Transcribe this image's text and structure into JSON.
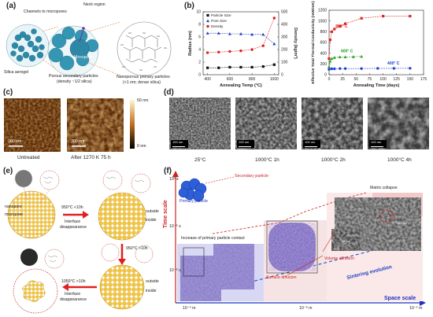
{
  "panels": {
    "a": {
      "label": "(a)",
      "channels": "Channels to micropores",
      "neck": "Neck region",
      "mesopore": "Mesopore",
      "silica_aerogel": "Silica aerogel",
      "porous_secondary": "Porous secondary particles",
      "porous_secondary_density": "(density ~1/2 silica)",
      "nanoporous_primary": "Nanoporous primary particles",
      "nanoporous_primary_sub": "(<1 nm; dense silica)"
    },
    "b": {
      "label": "(b)",
      "legend_left": [
        "Particle Size",
        "Pore Size",
        "Density"
      ],
      "legend_right": [
        "800° C",
        "600° C",
        "400° C"
      ]
    },
    "c": {
      "label": "(c)",
      "scale_top": "50 nm",
      "scale_bottom": "0 nm",
      "scalebar1": "300 nm",
      "scalebar2": "300 nm",
      "caption1": "Untreated",
      "caption2": "After 1270 K  75 h"
    },
    "d": {
      "label": "(d)",
      "scalebar": "100 nm",
      "captions": [
        "25°C",
        "1000°C  1h",
        "1000°C  2h",
        "1000°C  4h"
      ]
    },
    "e": {
      "label": "(e)",
      "nanopore": "nanopore",
      "micropore": "micropore",
      "step1": "950°C <10h",
      "interface1": "Interface",
      "disappearance1": "disappearance",
      "outside1": "outside",
      "inside1": "inside",
      "step2": "950°C >10h",
      "step3": "1050°C >10h",
      "interface2": "Interface",
      "disappearance2": "disappearance",
      "outside2": "outside",
      "inside2": "inside"
    },
    "f": {
      "label": "(f)",
      "time_scale": "Time scale",
      "space_scale": "Space scale",
      "y_ticks": [
        "10³ s",
        "10⁻⁶ s",
        "10⁻⁹ s"
      ],
      "x_ticks": [
        "10⁻⁹ m",
        "10⁻⁸ m",
        "10⁻⁶ m"
      ],
      "secondary_particle": "Secondary particle",
      "primary_particle": "Primary particle",
      "matrix_collapse": "Matrix collapse",
      "increase_contact": "Increase of primary particle contact",
      "volume_diffusion": "Volume diffusion",
      "surface_diffusion": "Surface diffusion",
      "sintering_evolution": "Sintering evolution",
      "scale_100nm_a": "100 nm",
      "scale_100nm_b": "100 nm",
      "scale_100nm_c": "100 nm",
      "scale_100nm_d": "100 nm"
    }
  },
  "chart_data": [
    {
      "type": "line",
      "xlabel": "Annealing Temp (°C)",
      "ylabel": "Radius (nm)",
      "y2label": "Density (kg/m³)",
      "x": [
        400,
        500,
        600,
        700,
        800,
        900,
        1000
      ],
      "xticks": [
        400,
        600,
        800,
        1000
      ],
      "ylim": [
        0,
        10
      ],
      "yticks": [
        0,
        2,
        4,
        6,
        8,
        10
      ],
      "y2lim": [
        0,
        500
      ],
      "y2ticks": [
        0,
        100,
        200,
        300,
        400,
        500
      ],
      "series": [
        {
          "name": "Particle Size",
          "color": "#111111",
          "marker": "square",
          "axis": "left",
          "values": [
            1.1,
            1.1,
            1.2,
            1.2,
            1.2,
            1.3,
            1.6
          ]
        },
        {
          "name": "Pore Size",
          "color": "#1f3fbf",
          "marker": "triangle",
          "axis": "left",
          "values": [
            6.6,
            6.6,
            6.5,
            6.5,
            6.4,
            6.4,
            4.9
          ]
        },
        {
          "name": "Density",
          "color": "#e02020",
          "marker": "circle",
          "axis": "right",
          "values": [
            175,
            180,
            185,
            190,
            200,
            230,
            450
          ]
        }
      ]
    },
    {
      "type": "line",
      "xlabel": "Annealing Time (days)",
      "ylabel": "Effective Total Thermal Conductivity (mW/mK)",
      "xlim": [
        0,
        175
      ],
      "xticks": [
        0,
        25,
        50,
        75,
        100,
        125,
        150,
        175
      ],
      "ylim": [
        0,
        1200
      ],
      "yticks": [
        0,
        200,
        400,
        600,
        800,
        1000,
        1200
      ],
      "series": [
        {
          "name": "800° C",
          "color": "#e02020",
          "marker": "square",
          "x": [
            0,
            2,
            5,
            10,
            20,
            30,
            60,
            100,
            150
          ],
          "values": [
            300,
            650,
            800,
            850,
            900,
            950,
            1050,
            1090,
            1090
          ]
        },
        {
          "name": "600° C",
          "color": "#22a022",
          "marker": "triangle",
          "x": [
            0,
            2,
            5,
            10,
            20,
            30,
            45,
            60
          ],
          "values": [
            150,
            250,
            300,
            320,
            330,
            330,
            335,
            340
          ]
        },
        {
          "name": "400° C",
          "color": "#2040d0",
          "marker": "circle",
          "x": [
            0,
            5,
            10,
            20,
            30,
            60,
            90,
            120,
            150
          ],
          "values": [
            100,
            110,
            110,
            115,
            115,
            115,
            118,
            118,
            120
          ]
        }
      ]
    }
  ]
}
